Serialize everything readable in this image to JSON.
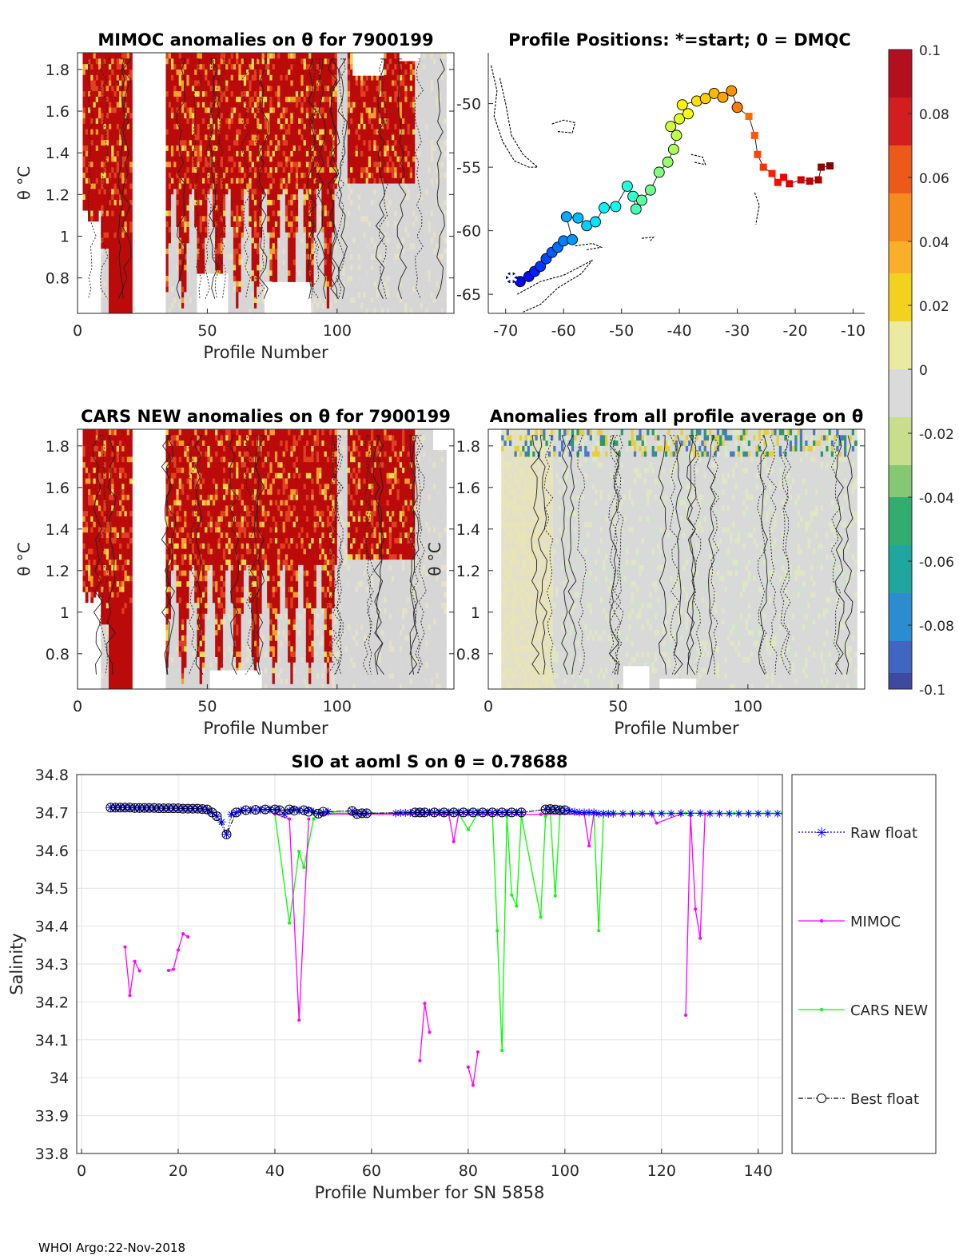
{
  "footer": "WHOI Argo:22-Nov-2018",
  "chart_data": [
    {
      "id": "mimoc",
      "type": "heatmap",
      "title": "MIMOC anomalies on θ  for 7900199",
      "xlabel": "Profile Number",
      "ylabel": "θ °C",
      "xlim": [
        0,
        145
      ],
      "ylim": [
        0.63,
        1.88
      ],
      "xticks": [
        0,
        50,
        100
      ],
      "yticks": [
        0.8,
        1,
        1.2,
        1.4,
        1.6,
        1.8
      ],
      "ytick_labels": [
        "0.8",
        "1",
        "1.2",
        "1.4",
        "1.6",
        "1.8"
      ],
      "gaps": [
        [
          21,
          34
        ]
      ]
    },
    {
      "id": "positions",
      "type": "scatter",
      "title": "Profile Positions: *=start; 0 = DMQC",
      "xlim": [
        -73,
        -8
      ],
      "ylim": [
        -66.5,
        -46
      ],
      "xticks": [
        -70,
        -60,
        -50,
        -40,
        -30,
        -20,
        -10
      ],
      "yticks": [
        -65,
        -60,
        -55,
        -50
      ],
      "track": [
        [
          -69.0,
          -63.7
        ],
        [
          -67.5,
          -64.0
        ],
        [
          -66.0,
          -63.6
        ],
        [
          -65.0,
          -63.2
        ],
        [
          -64.0,
          -62.8
        ],
        [
          -63.0,
          -62.2
        ],
        [
          -62.0,
          -61.7
        ],
        [
          -61.0,
          -61.3
        ],
        [
          -60.0,
          -60.8
        ],
        [
          -58.5,
          -60.7
        ],
        [
          -59.5,
          -58.9
        ],
        [
          -57.5,
          -59.0
        ],
        [
          -56.0,
          -59.6
        ],
        [
          -54.5,
          -59.3
        ],
        [
          -53.0,
          -58.2
        ],
        [
          -51.0,
          -58.1
        ],
        [
          -49.0,
          -56.5
        ],
        [
          -48.0,
          -57.3
        ],
        [
          -47.5,
          -58.3
        ],
        [
          -46.5,
          -57.6
        ],
        [
          -45.0,
          -56.8
        ],
        [
          -43.5,
          -55.4
        ],
        [
          -42.0,
          -54.6
        ],
        [
          -41.0,
          -53.6
        ],
        [
          -40.5,
          -52.5
        ],
        [
          -41.5,
          -51.8
        ],
        [
          -40.0,
          -51.2
        ],
        [
          -38.5,
          -50.8
        ],
        [
          -39.5,
          -50.1
        ],
        [
          -37.0,
          -49.8
        ],
        [
          -35.5,
          -49.6
        ],
        [
          -34.0,
          -49.2
        ],
        [
          -32.5,
          -49.5
        ],
        [
          -31.0,
          -49.0
        ],
        [
          -30.0,
          -50.3
        ],
        [
          -28.0,
          -51.0
        ],
        [
          -27.0,
          -52.5
        ],
        [
          -26.5,
          -54.0
        ],
        [
          -25.5,
          -55.0
        ],
        [
          -24.0,
          -55.5
        ],
        [
          -23.0,
          -56.2
        ],
        [
          -22.0,
          -55.8
        ],
        [
          -21.0,
          -56.3
        ],
        [
          -19.0,
          -56.0
        ],
        [
          -17.5,
          -56.1
        ],
        [
          -16.0,
          -56.0
        ],
        [
          -15.5,
          -55.0
        ],
        [
          -14.0,
          -54.9
        ]
      ],
      "start": [
        -69.0,
        -63.7
      ]
    },
    {
      "id": "cars",
      "type": "heatmap",
      "title": "CARS NEW anomalies on θ for 7900199",
      "xlabel": "Profile Number",
      "ylabel": "θ °C",
      "xlim": [
        0,
        145
      ],
      "ylim": [
        0.63,
        1.88
      ],
      "xticks": [
        0,
        50,
        100
      ],
      "yticks": [
        0.8,
        1,
        1.2,
        1.4,
        1.6,
        1.8
      ],
      "ytick_labels": [
        "0.8",
        "1",
        "1.2",
        "1.4",
        "1.6",
        "1.8"
      ],
      "gaps": [
        [
          21,
          34
        ]
      ]
    },
    {
      "id": "allavg",
      "type": "heatmap",
      "title": "Anomalies from all profile average on θ",
      "xlabel": "Profile Number",
      "ylabel": "θ °C",
      "xlim": [
        0,
        145
      ],
      "ylim": [
        0.63,
        1.88
      ],
      "xticks": [
        0,
        50,
        100
      ],
      "yticks": [
        0.8,
        1,
        1.2,
        1.4,
        1.6,
        1.8
      ],
      "ytick_labels": [
        "0.8",
        "1",
        "1.2",
        "1.4",
        "1.6",
        "1.8"
      ],
      "gaps": []
    },
    {
      "id": "colorbar",
      "type": "colorbar",
      "range": [
        -0.1,
        0.1
      ],
      "ticks": [
        0.1,
        0.08,
        0.06,
        0.04,
        0.02,
        0,
        -0.02,
        -0.04,
        -0.06,
        -0.08,
        -0.1
      ],
      "tick_labels": [
        "0.1",
        "0.08",
        "0.06",
        "0.04",
        "0.02",
        "0",
        "-0.02",
        "-0.04",
        "-0.06",
        "-0.08",
        "-0.1"
      ]
    },
    {
      "id": "salinity",
      "type": "line",
      "title": "SIO at aoml S on θ = 0.78688°C",
      "xlabel": "Profile Number for SN 5858",
      "ylabel": "Salinity",
      "xlim": [
        -1,
        145
      ],
      "ylim": [
        33.8,
        34.8
      ],
      "xticks": [
        0,
        20,
        40,
        60,
        80,
        100,
        120,
        140
      ],
      "yticks": [
        33.8,
        33.9,
        34,
        34.1,
        34.2,
        34.3,
        34.4,
        34.5,
        34.6,
        34.7,
        34.8
      ],
      "ytick_labels": [
        "33.8",
        "33.9",
        "34",
        "34.1",
        "34.2",
        "34.3",
        "34.4",
        "34.5",
        "34.6",
        "34.7",
        "34.8"
      ],
      "legend": [
        "Raw float",
        "MIMOC",
        "CARS NEW",
        "Best float"
      ],
      "series": [
        {
          "name": "Raw float",
          "color": "#0000ff",
          "x": [
            6,
            7,
            8,
            9,
            10,
            11,
            12,
            13,
            14,
            15,
            16,
            17,
            18,
            19,
            20,
            21,
            22,
            23,
            24,
            25,
            26,
            27,
            28,
            29,
            30,
            31,
            32,
            33,
            34,
            35,
            36,
            37,
            38,
            39,
            40,
            41,
            42,
            43,
            44,
            45,
            46,
            47,
            48,
            49,
            50,
            51,
            56,
            57,
            58,
            59,
            65,
            66,
            67,
            68,
            69,
            70,
            71,
            72,
            73,
            74,
            75,
            76,
            77,
            78,
            79,
            80,
            81,
            82,
            83,
            84,
            85,
            86,
            87,
            88,
            89,
            90,
            91,
            96,
            97,
            98,
            99,
            100,
            101,
            102,
            103,
            104,
            105,
            106,
            107,
            108,
            109,
            110,
            112,
            114,
            116,
            118,
            120,
            122,
            124,
            126,
            128,
            130,
            132,
            134,
            136,
            138,
            140,
            142,
            144
          ],
          "y": [
            34.713,
            34.713,
            34.713,
            34.713,
            34.713,
            34.712,
            34.712,
            34.712,
            34.712,
            34.712,
            34.711,
            34.711,
            34.711,
            34.711,
            34.711,
            34.71,
            34.71,
            34.71,
            34.71,
            34.709,
            34.708,
            34.7,
            34.69,
            34.675,
            34.642,
            34.695,
            34.7,
            34.705,
            34.706,
            34.706,
            34.707,
            34.707,
            34.708,
            34.708,
            34.708,
            34.706,
            34.695,
            34.705,
            34.708,
            34.705,
            34.705,
            34.706,
            34.702,
            34.697,
            34.7,
            34.702,
            34.704,
            34.696,
            34.698,
            34.698,
            34.698,
            34.699,
            34.699,
            34.699,
            34.7,
            34.7,
            34.7,
            34.7,
            34.7,
            34.7,
            34.7,
            34.7,
            34.7,
            34.7,
            34.7,
            34.7,
            34.7,
            34.7,
            34.7,
            34.7,
            34.7,
            34.7,
            34.7,
            34.7,
            34.7,
            34.7,
            34.7,
            34.708,
            34.709,
            34.708,
            34.706,
            34.706,
            34.704,
            34.702,
            34.7,
            34.7,
            34.7,
            34.7,
            34.697,
            34.697,
            34.697,
            34.697,
            34.697,
            34.697,
            34.697,
            34.697,
            34.697,
            34.697,
            34.698,
            34.698,
            34.698,
            34.697,
            34.697,
            34.697,
            34.697,
            34.697,
            34.697,
            34.697,
            34.697
          ]
        },
        {
          "name": "MIMOC",
          "color": "#ff00ff",
          "segments": [
            {
              "x": [
                9,
                10,
                11,
                12
              ],
              "y": [
                34.345,
                34.217,
                34.307,
                34.282
              ]
            },
            {
              "x": [
                18,
                19,
                20,
                21,
                22
              ],
              "y": [
                34.283,
                34.286,
                34.337,
                34.38,
                34.372
              ]
            },
            {
              "x": [
                40,
                43,
                45,
                47
              ],
              "y": [
                34.696,
                34.683,
                34.152,
                34.683
              ]
            },
            {
              "x": [
                50,
                75,
                76,
                77,
                78,
                85,
                95,
                104,
                105,
                106,
                118,
                119,
                124
              ],
              "y": [
                34.696,
                34.695,
                34.695,
                34.623,
                34.695,
                34.695,
                34.695,
                34.696,
                34.612,
                34.696,
                34.696,
                34.672,
                34.696
              ]
            },
            {
              "x": [
                125,
                126,
                127,
                128,
                129
              ],
              "y": [
                34.165,
                34.692,
                34.445,
                34.368,
                34.696
              ]
            },
            {
              "x": [
                70,
                71,
                72
              ],
              "y": [
                34.045,
                34.196,
                34.12
              ]
            },
            {
              "x": [
                80,
                81,
                82
              ],
              "y": [
                34.028,
                33.98,
                34.068
              ]
            }
          ]
        },
        {
          "name": "CARS NEW",
          "color": "#00ff00",
          "x": [
            40,
            43,
            45,
            46,
            48,
            49,
            52,
            60,
            65,
            75,
            78,
            80,
            82,
            85,
            86,
            87,
            88,
            89,
            90,
            91,
            95,
            96,
            97,
            98,
            99,
            105,
            106,
            107,
            108,
            110,
            115,
            120,
            125,
            130,
            135,
            140,
            145
          ],
          "y": [
            34.696,
            34.408,
            34.597,
            34.555,
            34.683,
            34.697,
            34.698,
            34.698,
            34.698,
            34.698,
            34.698,
            34.655,
            34.698,
            34.698,
            34.388,
            34.072,
            34.69,
            34.482,
            34.453,
            34.69,
            34.424,
            34.69,
            34.698,
            34.48,
            34.698,
            34.698,
            34.698,
            34.388,
            34.698,
            34.698,
            34.698,
            34.698,
            34.698,
            34.698,
            34.698,
            34.698,
            34.698
          ]
        },
        {
          "name": "Best float",
          "color": "#000000",
          "x": [
            6,
            7,
            8,
            9,
            10,
            11,
            12,
            13,
            14,
            15,
            16,
            17,
            18,
            19,
            20,
            21,
            22,
            23,
            24,
            25,
            26,
            27,
            28,
            30,
            32,
            34,
            36,
            38,
            40,
            41,
            43,
            44,
            46,
            47,
            49,
            50,
            56,
            57,
            58,
            59,
            69,
            70,
            71,
            73,
            75,
            77,
            79,
            81,
            83,
            85,
            87,
            89,
            91,
            96,
            97,
            98,
            99,
            100
          ],
          "y": [
            34.713,
            34.713,
            34.713,
            34.713,
            34.713,
            34.712,
            34.712,
            34.712,
            34.712,
            34.712,
            34.711,
            34.711,
            34.711,
            34.711,
            34.711,
            34.71,
            34.71,
            34.71,
            34.71,
            34.709,
            34.708,
            34.7,
            34.69,
            34.642,
            34.7,
            34.706,
            34.707,
            34.708,
            34.708,
            34.706,
            34.708,
            34.705,
            34.706,
            34.702,
            34.697,
            34.702,
            34.704,
            34.696,
            34.698,
            34.698,
            34.7,
            34.7,
            34.7,
            34.7,
            34.7,
            34.7,
            34.7,
            34.7,
            34.7,
            34.7,
            34.7,
            34.7,
            34.7,
            34.708,
            34.709,
            34.708,
            34.706,
            34.706
          ]
        }
      ]
    }
  ]
}
